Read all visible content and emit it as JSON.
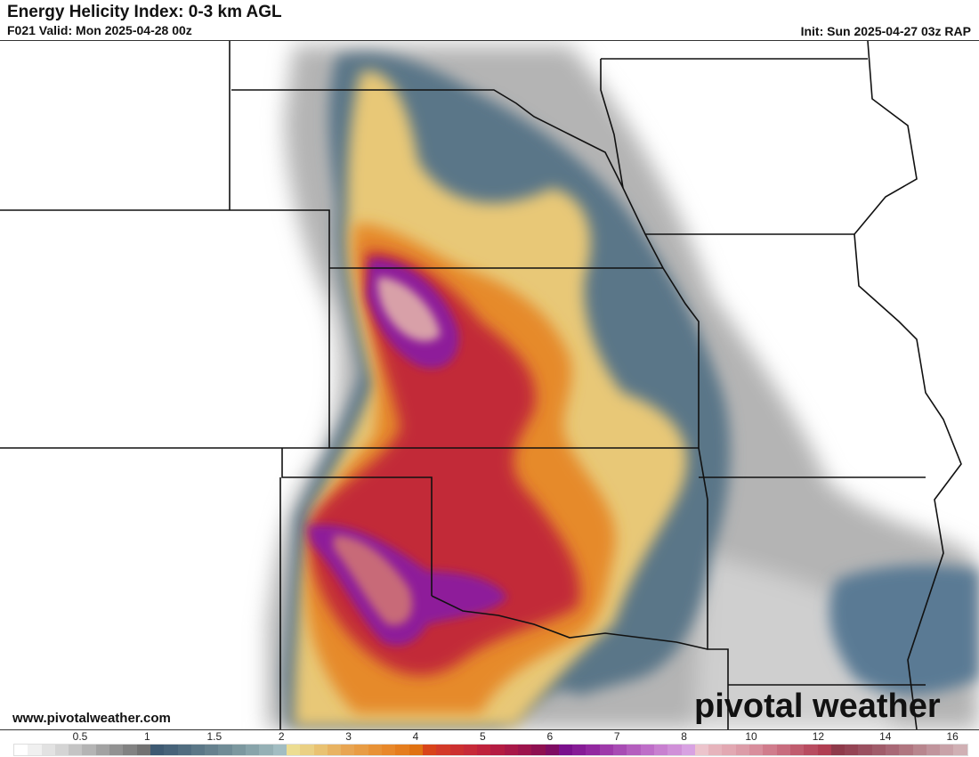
{
  "header": {
    "title": "Energy Helicity Index: 0-3 km AGL",
    "valid": "F021 Valid: Mon 2025-04-28 00z",
    "init": "Init: Sun 2025-04-27 03z RAP"
  },
  "footer": {
    "website": "www.pivotalweather.com",
    "logo": "pivotal weather"
  },
  "colorbar": {
    "ticks": [
      "0.5",
      "1",
      "1.5",
      "2",
      "3",
      "4",
      "5",
      "6",
      "7",
      "8",
      "10",
      "12",
      "14",
      "16"
    ],
    "colors": [
      "#ffffff",
      "#f0f0f0",
      "#e2e2e2",
      "#d4d4d4",
      "#c4c4c4",
      "#b4b4b4",
      "#a2a2a2",
      "#929292",
      "#828282",
      "#727272",
      "#3e5a72",
      "#476379",
      "#516d80",
      "#5b7787",
      "#66818e",
      "#708c96",
      "#7c989f",
      "#88a4aa",
      "#95b0b5",
      "#a2bdc2",
      "#ecdd92",
      "#ead084",
      "#e9c272",
      "#e8b362",
      "#e8a552",
      "#e89c44",
      "#e89236",
      "#e8882a",
      "#e57d1e",
      "#e07212",
      "#d8441a",
      "#d33a28",
      "#cc3030",
      "#c62a38",
      "#bf223c",
      "#b41c42",
      "#a81848",
      "#9c144c",
      "#8e1050",
      "#7e0c62",
      "#7a108c",
      "#861c96",
      "#9228a0",
      "#9e3aaa",
      "#a84cb4",
      "#b45ebe",
      "#be6ec8",
      "#c880d0",
      "#d090d8",
      "#d8a2e2",
      "#ecc4cc",
      "#e6b4bc",
      "#e2a8b2",
      "#dc9ca8",
      "#d88e9c",
      "#d07c8c",
      "#c86c7e",
      "#c05c6e",
      "#b84c60",
      "#b03e52",
      "#8e3a4a",
      "#944454",
      "#9a5060",
      "#a05c6a",
      "#a86876",
      "#b07680",
      "#b8868e",
      "#c0949c",
      "#c8a2a8",
      "#d0b0b4"
    ],
    "colors_meaning": "EHI value bins from 0 to 16"
  },
  "map": {
    "field": "Energy Helicity Index",
    "region": "Central Plains"
  }
}
